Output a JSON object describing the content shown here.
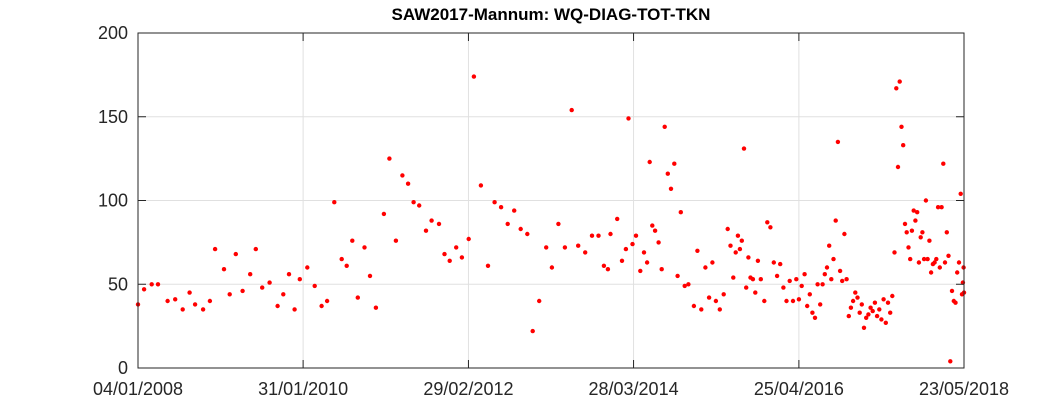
{
  "chart_data": {
    "type": "scatter",
    "title": "SAW2017-Mannum: WQ-DIAG-TOT-TKN",
    "xlabel": "",
    "ylabel": "",
    "x_axis_type": "date",
    "xlim": [
      "2008-01-04",
      "2018-05-23"
    ],
    "ylim": [
      0,
      200
    ],
    "x_ticks": [
      "04/01/2008",
      "31/01/2010",
      "29/02/2012",
      "28/03/2014",
      "25/04/2016",
      "23/05/2018"
    ],
    "y_ticks": [
      0,
      50,
      100,
      150,
      200
    ],
    "grid": true,
    "marker_color": "#ff0000",
    "series": [
      {
        "marker": "dot",
        "points": [
          [
            "2008-01-04",
            38
          ],
          [
            "2008-02-01",
            47
          ],
          [
            "2008-03-07",
            50
          ],
          [
            "2008-04-05",
            50
          ],
          [
            "2008-05-19",
            40
          ],
          [
            "2008-06-23",
            41
          ],
          [
            "2008-07-27",
            35
          ],
          [
            "2008-08-28",
            45
          ],
          [
            "2008-09-22",
            38
          ],
          [
            "2008-10-29",
            35
          ],
          [
            "2008-11-29",
            40
          ],
          [
            "2008-12-23",
            71
          ],
          [
            "2009-02-02",
            59
          ],
          [
            "2009-02-28",
            44
          ],
          [
            "2009-03-28",
            68
          ],
          [
            "2009-04-28",
            46
          ],
          [
            "2009-06-02",
            56
          ],
          [
            "2009-06-28",
            71
          ],
          [
            "2009-07-27",
            48
          ],
          [
            "2009-08-30",
            51
          ],
          [
            "2009-10-06",
            37
          ],
          [
            "2009-11-01",
            44
          ],
          [
            "2009-11-27",
            56
          ],
          [
            "2009-12-23",
            35
          ],
          [
            "2010-01-16",
            53
          ],
          [
            "2010-02-19",
            60
          ],
          [
            "2010-03-25",
            49
          ],
          [
            "2010-04-26",
            37
          ],
          [
            "2010-05-21",
            40
          ],
          [
            "2010-06-23",
            99
          ],
          [
            "2010-07-27",
            65
          ],
          [
            "2010-08-19",
            61
          ],
          [
            "2010-09-14",
            76
          ],
          [
            "2010-10-09",
            42
          ],
          [
            "2010-11-09",
            72
          ],
          [
            "2010-12-04",
            55
          ],
          [
            "2010-12-31",
            36
          ],
          [
            "2011-02-06",
            92
          ],
          [
            "2011-03-03",
            125
          ],
          [
            "2011-04-02",
            76
          ],
          [
            "2011-05-02",
            115
          ],
          [
            "2011-05-28",
            110
          ],
          [
            "2011-06-22",
            99
          ],
          [
            "2011-07-18",
            97
          ],
          [
            "2011-08-18",
            82
          ],
          [
            "2011-09-13",
            88
          ],
          [
            "2011-10-17",
            86
          ],
          [
            "2011-11-11",
            68
          ],
          [
            "2011-12-05",
            64
          ],
          [
            "2012-01-04",
            72
          ],
          [
            "2012-01-30",
            66
          ],
          [
            "2012-03-01",
            77
          ],
          [
            "2012-03-25",
            174
          ],
          [
            "2012-04-26",
            109
          ],
          [
            "2012-05-29",
            61
          ],
          [
            "2012-06-28",
            99
          ],
          [
            "2012-07-28",
            96
          ],
          [
            "2012-08-27",
            86
          ],
          [
            "2012-09-26",
            94
          ],
          [
            "2012-10-26",
            83
          ],
          [
            "2012-11-25",
            80
          ],
          [
            "2012-12-20",
            22
          ],
          [
            "2013-01-19",
            40
          ],
          [
            "2013-02-20",
            72
          ],
          [
            "2013-03-18",
            60
          ],
          [
            "2013-04-17",
            86
          ],
          [
            "2013-05-17",
            72
          ],
          [
            "2013-06-17",
            154
          ],
          [
            "2013-07-17",
            73
          ],
          [
            "2013-08-18",
            69
          ],
          [
            "2013-09-18",
            79
          ],
          [
            "2013-10-18",
            79
          ],
          [
            "2013-11-12",
            61
          ],
          [
            "2013-11-30",
            59
          ],
          [
            "2013-12-12",
            80
          ],
          [
            "2014-01-12",
            89
          ],
          [
            "2014-02-03",
            64
          ],
          [
            "2014-02-21",
            71
          ],
          [
            "2014-03-05",
            149
          ],
          [
            "2014-03-23",
            74
          ],
          [
            "2014-04-08",
            79
          ],
          [
            "2014-04-28",
            58
          ],
          [
            "2014-05-15",
            69
          ],
          [
            "2014-05-29",
            63
          ],
          [
            "2014-06-10",
            123
          ],
          [
            "2014-06-22",
            85
          ],
          [
            "2014-07-05",
            82
          ],
          [
            "2014-07-21",
            75
          ],
          [
            "2014-08-04",
            59
          ],
          [
            "2014-08-18",
            144
          ],
          [
            "2014-09-01",
            116
          ],
          [
            "2014-09-16",
            107
          ],
          [
            "2014-10-01",
            122
          ],
          [
            "2014-10-16",
            55
          ],
          [
            "2014-10-31",
            93
          ],
          [
            "2014-11-18",
            49
          ],
          [
            "2014-12-05",
            50
          ],
          [
            "2014-12-30",
            37
          ],
          [
            "2015-01-15",
            70
          ],
          [
            "2015-02-02",
            35
          ],
          [
            "2015-02-21",
            60
          ],
          [
            "2015-03-10",
            42
          ],
          [
            "2015-03-25",
            63
          ],
          [
            "2015-04-10",
            40
          ],
          [
            "2015-04-28",
            35
          ],
          [
            "2015-05-16",
            44
          ],
          [
            "2015-06-03",
            83
          ],
          [
            "2015-06-16",
            73
          ],
          [
            "2015-06-29",
            54
          ],
          [
            "2015-07-10",
            69
          ],
          [
            "2015-07-20",
            79
          ],
          [
            "2015-07-29",
            71
          ],
          [
            "2015-08-07",
            76
          ],
          [
            "2015-08-17",
            131
          ],
          [
            "2015-08-27",
            48
          ],
          [
            "2015-09-06",
            66
          ],
          [
            "2015-09-16",
            54
          ],
          [
            "2015-09-27",
            53
          ],
          [
            "2015-10-08",
            45
          ],
          [
            "2015-10-20",
            64
          ],
          [
            "2015-11-02",
            53
          ],
          [
            "2015-11-18",
            40
          ],
          [
            "2015-12-02",
            87
          ],
          [
            "2015-12-16",
            84
          ],
          [
            "2016-01-01",
            63
          ],
          [
            "2016-01-16",
            55
          ],
          [
            "2016-01-30",
            62
          ],
          [
            "2016-02-14",
            48
          ],
          [
            "2016-02-28",
            40
          ],
          [
            "2016-03-14",
            52
          ],
          [
            "2016-03-29",
            40
          ],
          [
            "2016-04-13",
            53
          ],
          [
            "2016-04-25",
            41
          ],
          [
            "2016-05-08",
            49
          ],
          [
            "2016-05-21",
            56
          ],
          [
            "2016-06-02",
            37
          ],
          [
            "2016-06-14",
            44
          ],
          [
            "2016-06-26",
            33
          ],
          [
            "2016-07-08",
            30
          ],
          [
            "2016-07-20",
            50
          ],
          [
            "2016-08-01",
            38
          ],
          [
            "2016-08-12",
            50
          ],
          [
            "2016-08-22",
            56
          ],
          [
            "2016-09-01",
            60
          ],
          [
            "2016-09-11",
            73
          ],
          [
            "2016-09-21",
            53
          ],
          [
            "2016-10-01",
            65
          ],
          [
            "2016-10-11",
            88
          ],
          [
            "2016-10-21",
            135
          ],
          [
            "2016-10-31",
            58
          ],
          [
            "2016-11-10",
            52
          ],
          [
            "2016-11-20",
            80
          ],
          [
            "2016-11-30",
            53
          ],
          [
            "2016-12-10",
            31
          ],
          [
            "2016-12-20",
            36
          ],
          [
            "2016-12-30",
            40
          ],
          [
            "2017-01-09",
            45
          ],
          [
            "2017-01-19",
            42
          ],
          [
            "2017-01-29",
            33
          ],
          [
            "2017-02-08",
            38
          ],
          [
            "2017-02-18",
            24
          ],
          [
            "2017-02-28",
            30
          ],
          [
            "2017-03-10",
            32
          ],
          [
            "2017-03-20",
            36
          ],
          [
            "2017-03-30",
            34
          ],
          [
            "2017-04-09",
            39
          ],
          [
            "2017-04-19",
            31
          ],
          [
            "2017-04-29",
            35
          ],
          [
            "2017-05-09",
            29
          ],
          [
            "2017-05-19",
            41
          ],
          [
            "2017-05-29",
            27
          ],
          [
            "2017-06-08",
            39
          ],
          [
            "2017-06-18",
            33
          ],
          [
            "2017-06-28",
            43
          ],
          [
            "2017-07-08",
            69
          ],
          [
            "2017-07-16",
            167
          ],
          [
            "2017-07-24",
            120
          ],
          [
            "2017-08-01",
            171
          ],
          [
            "2017-08-09",
            144
          ],
          [
            "2017-08-17",
            133
          ],
          [
            "2017-08-25",
            86
          ],
          [
            "2017-09-02",
            81
          ],
          [
            "2017-09-10",
            72
          ],
          [
            "2017-09-18",
            65
          ],
          [
            "2017-09-26",
            82
          ],
          [
            "2017-10-04",
            94
          ],
          [
            "2017-10-12",
            88
          ],
          [
            "2017-10-20",
            93
          ],
          [
            "2017-10-28",
            63
          ],
          [
            "2017-11-05",
            78
          ],
          [
            "2017-11-13",
            81
          ],
          [
            "2017-11-21",
            65
          ],
          [
            "2017-11-29",
            100
          ],
          [
            "2017-12-07",
            65
          ],
          [
            "2017-12-15",
            76
          ],
          [
            "2017-12-23",
            57
          ],
          [
            "2017-12-31",
            62
          ],
          [
            "2018-01-08",
            63
          ],
          [
            "2018-01-16",
            65
          ],
          [
            "2018-01-24",
            96
          ],
          [
            "2018-02-01",
            60
          ],
          [
            "2018-02-09",
            96
          ],
          [
            "2018-02-17",
            122
          ],
          [
            "2018-02-25",
            63
          ],
          [
            "2018-03-05",
            81
          ],
          [
            "2018-03-13",
            67
          ],
          [
            "2018-03-21",
            4
          ],
          [
            "2018-03-29",
            46
          ],
          [
            "2018-04-06",
            40
          ],
          [
            "2018-04-14",
            39
          ],
          [
            "2018-04-22",
            57
          ],
          [
            "2018-04-30",
            63
          ],
          [
            "2018-05-08",
            104
          ],
          [
            "2018-05-14",
            44
          ],
          [
            "2018-05-18",
            51
          ],
          [
            "2018-05-21",
            60
          ],
          [
            "2018-05-23",
            45
          ]
        ]
      }
    ]
  }
}
